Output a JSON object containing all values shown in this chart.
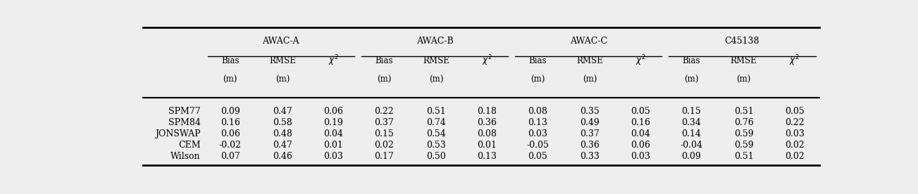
{
  "row_labels": [
    "SPM77",
    "SPM84",
    "JONSWAP",
    "CEM",
    "Wilson"
  ],
  "group_headers": [
    "AWAC-A",
    "AWAC-B",
    "AWAC-C",
    "C45138"
  ],
  "data": [
    [
      "0.09",
      "0.47",
      "0.06",
      "0.22",
      "0.51",
      "0.18",
      "0.08",
      "0.35",
      "0.05",
      "0.15",
      "0.51",
      "0.05"
    ],
    [
      "0.16",
      "0.58",
      "0.19",
      "0.37",
      "0.74",
      "0.36",
      "0.13",
      "0.49",
      "0.16",
      "0.34",
      "0.76",
      "0.22"
    ],
    [
      "0.06",
      "0.48",
      "0.04",
      "0.15",
      "0.54",
      "0.08",
      "0.03",
      "0.37",
      "0.04",
      "0.14",
      "0.59",
      "0.03"
    ],
    [
      "-0.02",
      "0.47",
      "0.01",
      "0.02",
      "0.53",
      "0.01",
      "-0.05",
      "0.36",
      "0.06",
      "-0.04",
      "0.59",
      "0.02"
    ],
    [
      "0.07",
      "0.46",
      "0.03",
      "0.17",
      "0.50",
      "0.13",
      "0.05",
      "0.33",
      "0.03",
      "0.09",
      "0.51",
      "0.02"
    ]
  ],
  "background_color": "#eeeeee",
  "fontsize_header": 9,
  "fontsize_data": 9,
  "fontsize_subheader": 8.5
}
